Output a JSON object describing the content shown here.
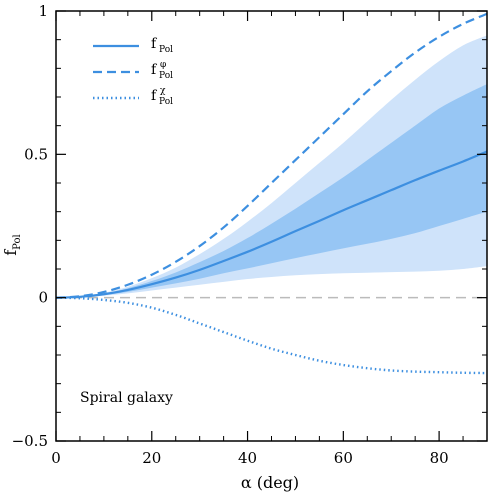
{
  "chart_data": {
    "type": "line",
    "xlabel": "α (deg)",
    "ylabel": "f",
    "ylabel_sub": "Pol",
    "xlim": [
      0,
      90
    ],
    "ylim": [
      -0.5,
      1
    ],
    "xticks": [
      0,
      20,
      40,
      60,
      80
    ],
    "xtick_labels": [
      "0",
      "20",
      "40",
      "60",
      "80"
    ],
    "yticks": [
      -0.5,
      0,
      0.5,
      1
    ],
    "ytick_labels": [
      "−0.5",
      "0",
      "0.5",
      "1"
    ],
    "grid": false,
    "legend_position": "top-left",
    "annotation": "Spiral galaxy",
    "colors": {
      "line": "#3d8fe0",
      "band_outer": "#cfe3fa",
      "band_inner": "#97c6f4",
      "zero_line": "#bbbbbb"
    },
    "series": [
      {
        "name": "f",
        "sub": "Pol",
        "sup": "",
        "style": "solid",
        "x": [
          0,
          5,
          10,
          15,
          20,
          25,
          30,
          35,
          40,
          45,
          50,
          55,
          60,
          65,
          70,
          75,
          80,
          85,
          90
        ],
        "y": [
          0,
          0.003,
          0.012,
          0.027,
          0.047,
          0.07,
          0.097,
          0.128,
          0.16,
          0.195,
          0.232,
          0.268,
          0.305,
          0.34,
          0.375,
          0.41,
          0.443,
          0.475,
          0.51
        ]
      },
      {
        "name": "f",
        "sub": "Pol",
        "sup": "φ",
        "style": "dashed",
        "x": [
          0,
          5,
          10,
          15,
          20,
          25,
          30,
          35,
          40,
          45,
          50,
          55,
          60,
          65,
          70,
          75,
          80,
          85,
          90
        ],
        "y": [
          0,
          0.005,
          0.02,
          0.045,
          0.08,
          0.125,
          0.18,
          0.245,
          0.32,
          0.4,
          0.48,
          0.56,
          0.64,
          0.72,
          0.79,
          0.855,
          0.91,
          0.955,
          0.99
        ]
      },
      {
        "name": "f",
        "sub": "Pol",
        "sup": "χ",
        "style": "dotted",
        "x": [
          0,
          5,
          10,
          15,
          20,
          25,
          30,
          35,
          40,
          45,
          50,
          55,
          60,
          65,
          70,
          75,
          80,
          85,
          90
        ],
        "y": [
          0,
          -0.002,
          -0.008,
          -0.018,
          -0.035,
          -0.06,
          -0.09,
          -0.12,
          -0.15,
          -0.178,
          -0.2,
          -0.22,
          -0.235,
          -0.246,
          -0.254,
          -0.258,
          -0.26,
          -0.262,
          -0.263
        ]
      }
    ],
    "bands": [
      {
        "level": "outer",
        "x": [
          0,
          5,
          10,
          15,
          20,
          25,
          30,
          35,
          40,
          45,
          50,
          55,
          60,
          65,
          70,
          75,
          80,
          85,
          90
        ],
        "lower": [
          0,
          0.002,
          0.007,
          0.015,
          0.025,
          0.035,
          0.045,
          0.055,
          0.065,
          0.072,
          0.078,
          0.082,
          0.085,
          0.087,
          0.089,
          0.091,
          0.094,
          0.1,
          0.11
        ],
        "upper": [
          0,
          0.004,
          0.017,
          0.038,
          0.068,
          0.105,
          0.152,
          0.205,
          0.265,
          0.33,
          0.4,
          0.47,
          0.54,
          0.615,
          0.69,
          0.76,
          0.825,
          0.88,
          0.915
        ]
      },
      {
        "level": "inner",
        "x": [
          0,
          5,
          10,
          15,
          20,
          25,
          30,
          35,
          40,
          45,
          50,
          55,
          60,
          65,
          70,
          75,
          80,
          85,
          90
        ],
        "lower": [
          0,
          0.002,
          0.009,
          0.02,
          0.035,
          0.05,
          0.066,
          0.085,
          0.102,
          0.12,
          0.138,
          0.155,
          0.172,
          0.188,
          0.205,
          0.225,
          0.25,
          0.275,
          0.3
        ],
        "upper": [
          0,
          0.004,
          0.015,
          0.033,
          0.058,
          0.088,
          0.124,
          0.163,
          0.208,
          0.258,
          0.31,
          0.365,
          0.42,
          0.48,
          0.54,
          0.6,
          0.66,
          0.705,
          0.745
        ]
      }
    ]
  }
}
